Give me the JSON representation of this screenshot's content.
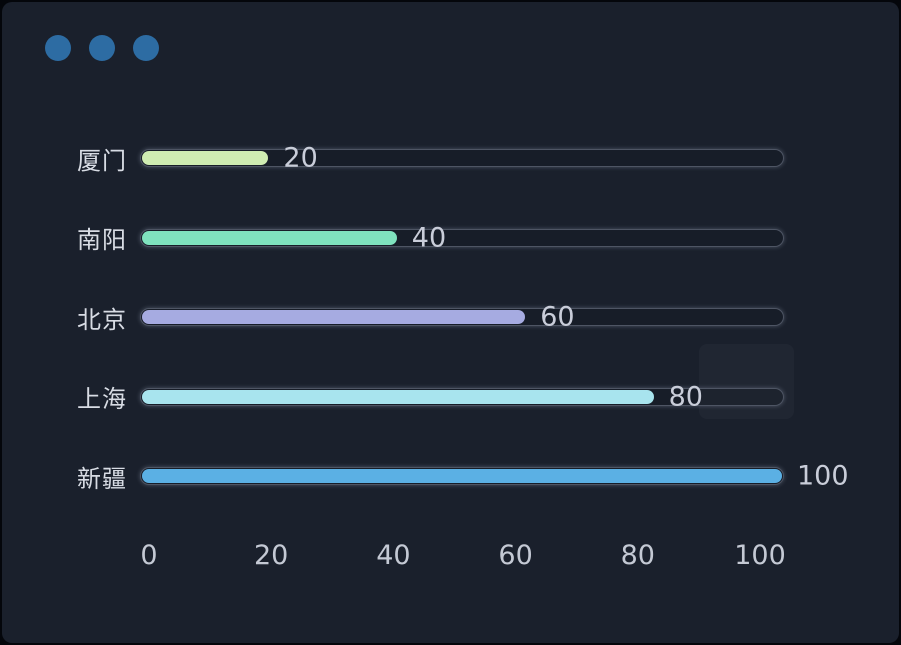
{
  "window": {
    "dot_color": "#2d6ca3",
    "background_color": "#1a202c",
    "dots": [
      "window-dot-1",
      "window-dot-2",
      "window-dot-3"
    ]
  },
  "chart_data": {
    "type": "bar",
    "orientation": "horizontal",
    "title": "",
    "xlabel": "",
    "ylabel": "",
    "categories": [
      "厦门",
      "南阳",
      "北京",
      "上海",
      "新疆"
    ],
    "values": [
      20,
      40,
      60,
      80,
      100
    ],
    "bar_colors": [
      "#cfecb2",
      "#7fe2be",
      "#a6abe1",
      "#a8e4ee",
      "#5bb0e4"
    ],
    "xlim": [
      0,
      100
    ],
    "x_ticks": [
      "0",
      "20",
      "40",
      "60",
      "80",
      "100"
    ],
    "grid": false,
    "legend": false,
    "value_labels_visible": true,
    "value_label_position": "right-of-bar-end",
    "track_border_color": "#4e5564",
    "label_color": "#d8dce4",
    "value_color": "#c9cdd9",
    "axis_color": "#c4c9d4"
  }
}
